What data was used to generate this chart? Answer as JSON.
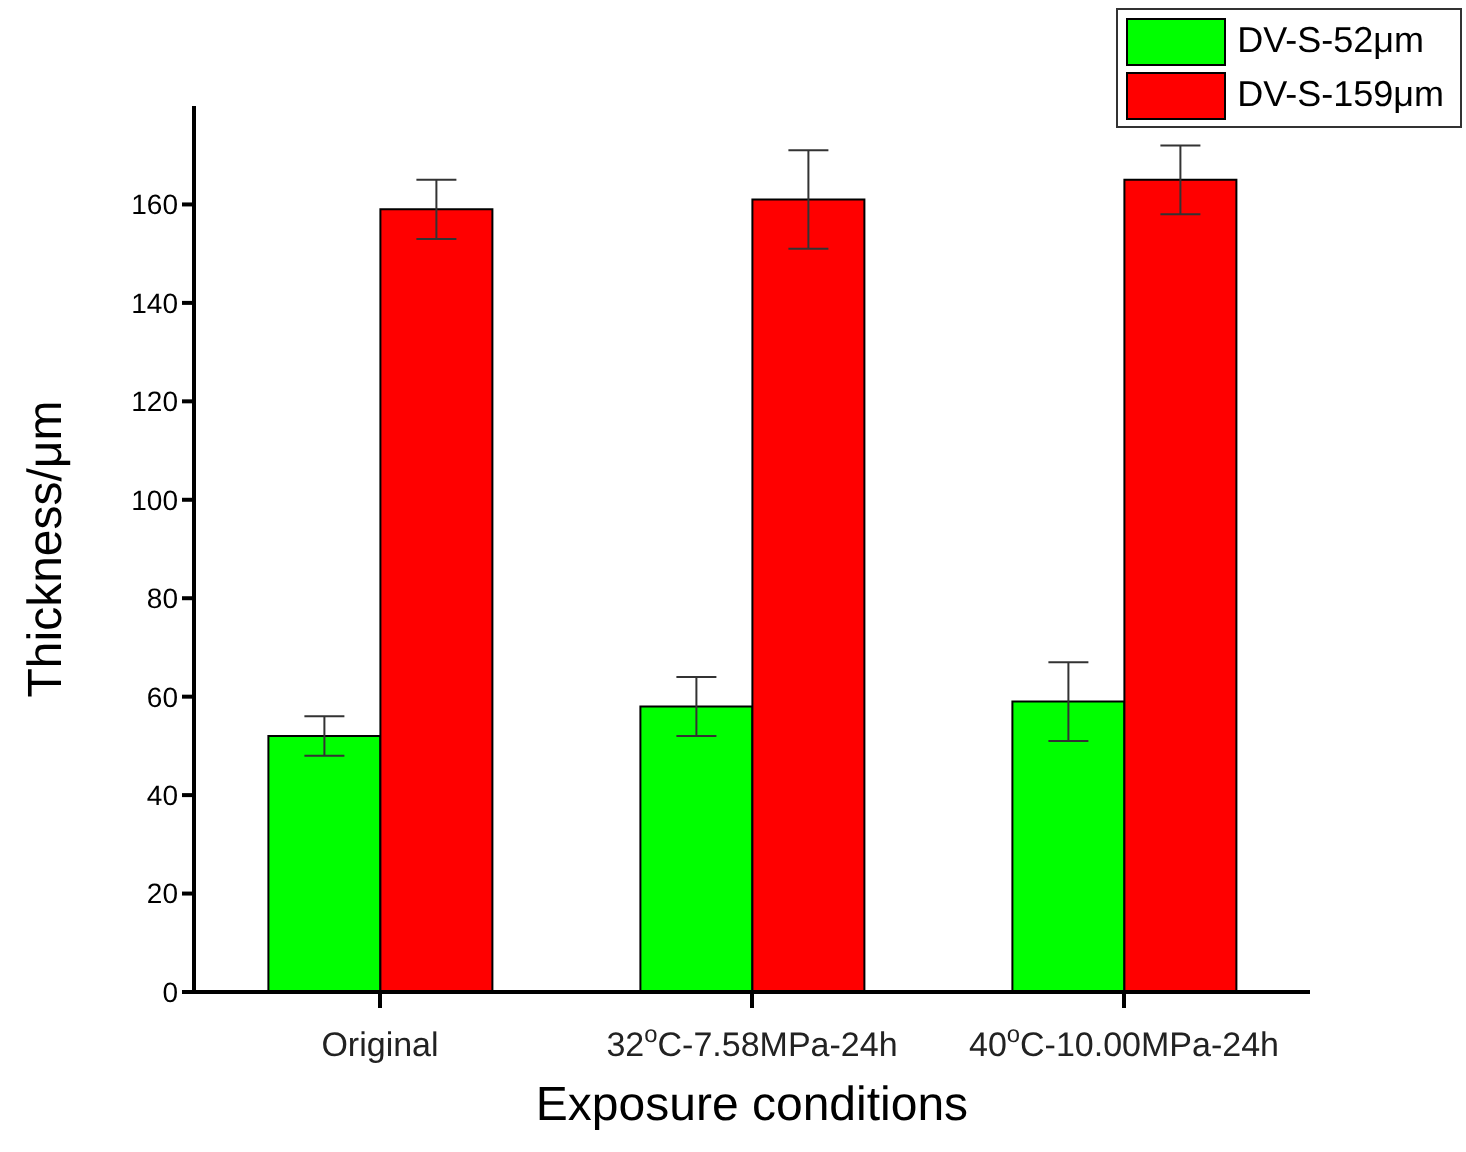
{
  "chart_data": {
    "type": "bar",
    "xlabel": "Exposure conditions",
    "ylabel": "Thickness/μm",
    "categories": [
      "Original",
      "32$^{o}$C-7.58MPa-24h",
      "40$^{o}$C-10.00MPa-24h"
    ],
    "series": [
      {
        "name": "DV-S-52μm",
        "color": "#00ff00",
        "values": [
          52,
          58,
          59
        ],
        "errors": [
          4,
          6,
          8
        ]
      },
      {
        "name": "DV-S-159μm",
        "color": "#ff0000",
        "values": [
          159,
          161,
          165
        ],
        "errors": [
          6,
          10,
          7
        ]
      }
    ],
    "ylim": [
      0,
      180
    ],
    "yticks": [
      0,
      20,
      40,
      60,
      80,
      100,
      120,
      140,
      160
    ],
    "legend": "top right"
  }
}
